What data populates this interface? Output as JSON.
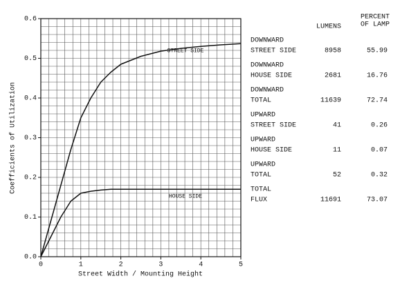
{
  "chart_data": {
    "type": "line",
    "x_label": "Street Width / Mounting Height",
    "y_label": "Coefficients of Utilization",
    "x": [
      0,
      0.25,
      0.5,
      0.75,
      1,
      1.25,
      1.5,
      1.75,
      2,
      2.5,
      3,
      3.5,
      4,
      4.5,
      5
    ],
    "series": [
      {
        "name": "STREET SIDE",
        "color": "#111111",
        "values": [
          0,
          0.09,
          0.18,
          0.27,
          0.35,
          0.4,
          0.44,
          0.465,
          0.485,
          0.505,
          0.518,
          0.525,
          0.53,
          0.534,
          0.537
        ]
      },
      {
        "name": "HOUSE SIDE",
        "color": "#111111",
        "values": [
          0,
          0.05,
          0.1,
          0.14,
          0.16,
          0.165,
          0.168,
          0.17,
          0.17,
          0.17,
          0.17,
          0.17,
          0.17,
          0.17,
          0.17
        ]
      }
    ],
    "xlim": [
      0,
      5
    ],
    "ylim": [
      0,
      0.6
    ],
    "xticks": [
      0,
      1,
      2,
      3,
      4,
      5
    ],
    "yticks": [
      {
        "value": 0,
        "label": "0.0"
      },
      0.1,
      0.2,
      0.3,
      0.4,
      0.5,
      0.6
    ],
    "grid": true,
    "xgrid_step": 0.2,
    "ygrid_step": 0.02
  },
  "table": {
    "header": {
      "lumens": "LUMENS",
      "percent": [
        "PERCENT",
        "OF LAMP"
      ]
    },
    "rows": [
      {
        "label": [
          "DOWNWARD",
          "STREET SIDE"
        ],
        "lumens": 8958,
        "percent": 55.99
      },
      {
        "label": [
          "DOWNWARD",
          "HOUSE SIDE"
        ],
        "lumens": 2681,
        "percent": 16.76
      },
      {
        "label": [
          "DOWNWARD",
          "TOTAL"
        ],
        "lumens": 11639,
        "percent": 72.74
      },
      {
        "label": [
          "UPWARD",
          "STREET SIDE"
        ],
        "lumens": 41,
        "percent": 0.26
      },
      {
        "label": [
          "UPWARD",
          "HOUSE SIDE"
        ],
        "lumens": 11,
        "percent": 0.07
      },
      {
        "label": [
          "UPWARD",
          "TOTAL"
        ],
        "lumens": 52,
        "percent": 0.32
      },
      {
        "label": [
          "TOTAL",
          "FLUX"
        ],
        "lumens": 11691,
        "percent": 73.07
      }
    ]
  }
}
